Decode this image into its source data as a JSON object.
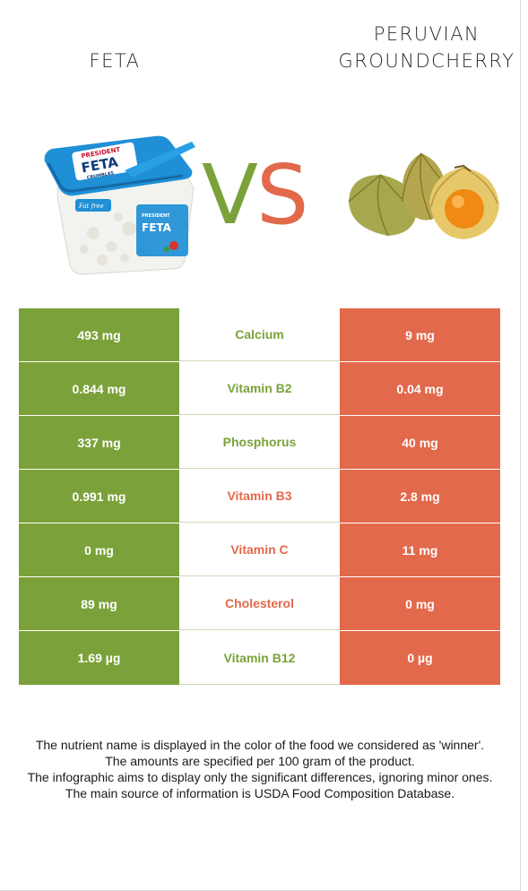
{
  "foods": {
    "left": {
      "title": "FETA"
    },
    "right": {
      "title_line1": "PERUVIAN",
      "title_line2": "GROUNDCHERRY"
    }
  },
  "vs": {
    "v": "V",
    "s": "S"
  },
  "colors": {
    "left_winner": "#7ba23a",
    "right_winner": "#e2694b",
    "text": "#1a1a1a"
  },
  "nutrients": [
    {
      "name": "Calcium",
      "left": "493 mg",
      "right": "9 mg",
      "winner": "left"
    },
    {
      "name": "Vitamin B2",
      "left": "0.844 mg",
      "right": "0.04 mg",
      "winner": "left"
    },
    {
      "name": "Phosphorus",
      "left": "337 mg",
      "right": "40 mg",
      "winner": "left"
    },
    {
      "name": "Vitamin B3",
      "left": "0.991 mg",
      "right": "2.8 mg",
      "winner": "right"
    },
    {
      "name": "Vitamin C",
      "left": "0 mg",
      "right": "11 mg",
      "winner": "right"
    },
    {
      "name": "Cholesterol",
      "left": "89 mg",
      "right": "0 mg",
      "winner": "right"
    },
    {
      "name": "Vitamin B12",
      "left": "1.69 µg",
      "right": "0 µg",
      "winner": "left"
    }
  ],
  "footnotes": [
    "The nutrient name is displayed in the color of the food we considered as 'winner'.",
    "The amounts are specified per 100 gram of the product.",
    "The infographic aims to display only the significant differences, ignoring minor ones.",
    "The main source of information is USDA Food Composition Database."
  ],
  "images": {
    "left_icon": "feta-crumbles-tub-icon",
    "left_package_brand": "PRESIDENT",
    "left_package_product": "FETA",
    "left_package_sub": "CRUMBLES",
    "left_package_tag": "Fat free",
    "right_icon": "physalis-berries-icon"
  }
}
